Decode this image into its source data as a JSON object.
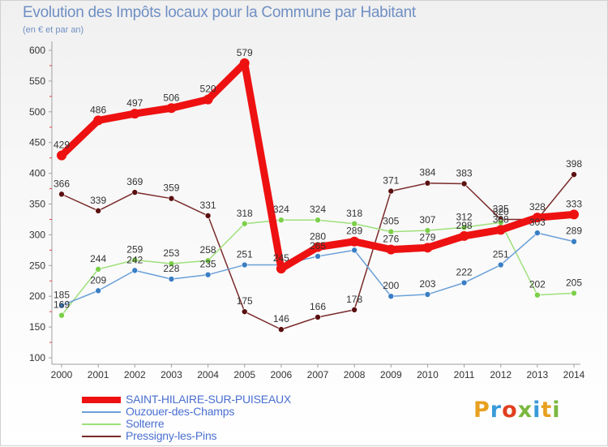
{
  "title": "Evolution des Impôts locaux pour la Commune par Habitant",
  "subtitle": "(en € et par an)",
  "logo": {
    "text": "Proxiti",
    "colors": [
      "#e8a020",
      "#3a9ad9",
      "#e04020",
      "#7ab840",
      "#3a9ad9",
      "#e8a020",
      "#7ab840"
    ]
  },
  "chart_data": {
    "type": "line",
    "categories": [
      "2000",
      "2001",
      "2002",
      "2003",
      "2004",
      "2005",
      "2006",
      "2007",
      "2008",
      "2009",
      "2010",
      "2011",
      "2012",
      "2013",
      "2014"
    ],
    "y_ticks": [
      100,
      150,
      200,
      250,
      300,
      350,
      400,
      450,
      500,
      550,
      600
    ],
    "ylim": [
      100,
      600
    ],
    "grid": false,
    "legend_position": "bottom-left",
    "series": [
      {
        "name": "Pressigny-les-Pins",
        "color": "#7a2a2a",
        "marker": "#5a1010",
        "width": 1.5,
        "r": 3.5,
        "values": [
          366,
          339,
          369,
          359,
          331,
          175,
          146,
          166,
          178,
          371,
          384,
          383,
          325,
          325,
          398
        ],
        "labels": [
          "366",
          "339",
          "369",
          "359",
          "331",
          "175",
          "146",
          "166",
          "178",
          "371",
          "384",
          "383",
          "325",
          "",
          "398"
        ]
      },
      {
        "name": "Solterre",
        "color": "#9ee07a",
        "marker": "#7ccf4a",
        "width": 1.5,
        "r": 3.5,
        "values": [
          169,
          244,
          259,
          253,
          258,
          318,
          324,
          324,
          318,
          305,
          307,
          312,
          320,
          202,
          205
        ],
        "labels": [
          "169",
          "244",
          "259",
          "253",
          "258",
          "318",
          "324",
          "324",
          "318",
          "305",
          "307",
          "312",
          "320",
          "202",
          "205"
        ]
      },
      {
        "name": "Ouzouer-des-Champs",
        "color": "#6aa0d8",
        "marker": "#3a7ec4",
        "width": 1.5,
        "r": 3.5,
        "values": [
          185,
          209,
          242,
          228,
          235,
          251,
          251,
          265,
          275,
          200,
          203,
          222,
          251,
          303,
          289
        ],
        "labels": [
          "185",
          "209",
          "242",
          "228",
          "235",
          "251",
          "",
          "265",
          "",
          "200",
          "203",
          "222",
          "251",
          "303",
          "289"
        ]
      },
      {
        "name": "SAINT-HILAIRE-SUR-PUISEAUX",
        "color": "#ee1111",
        "marker": "#ee1111",
        "width": 9,
        "r": 6,
        "values": [
          429,
          486,
          497,
          506,
          520,
          579,
          245,
          280,
          289,
          276,
          279,
          298,
          308,
          328,
          333
        ],
        "labels": [
          "429",
          "486",
          "497",
          "506",
          "520",
          "579",
          "245",
          "280",
          "289",
          "276",
          "279",
          "298",
          "308",
          "328",
          "333"
        ]
      }
    ]
  }
}
